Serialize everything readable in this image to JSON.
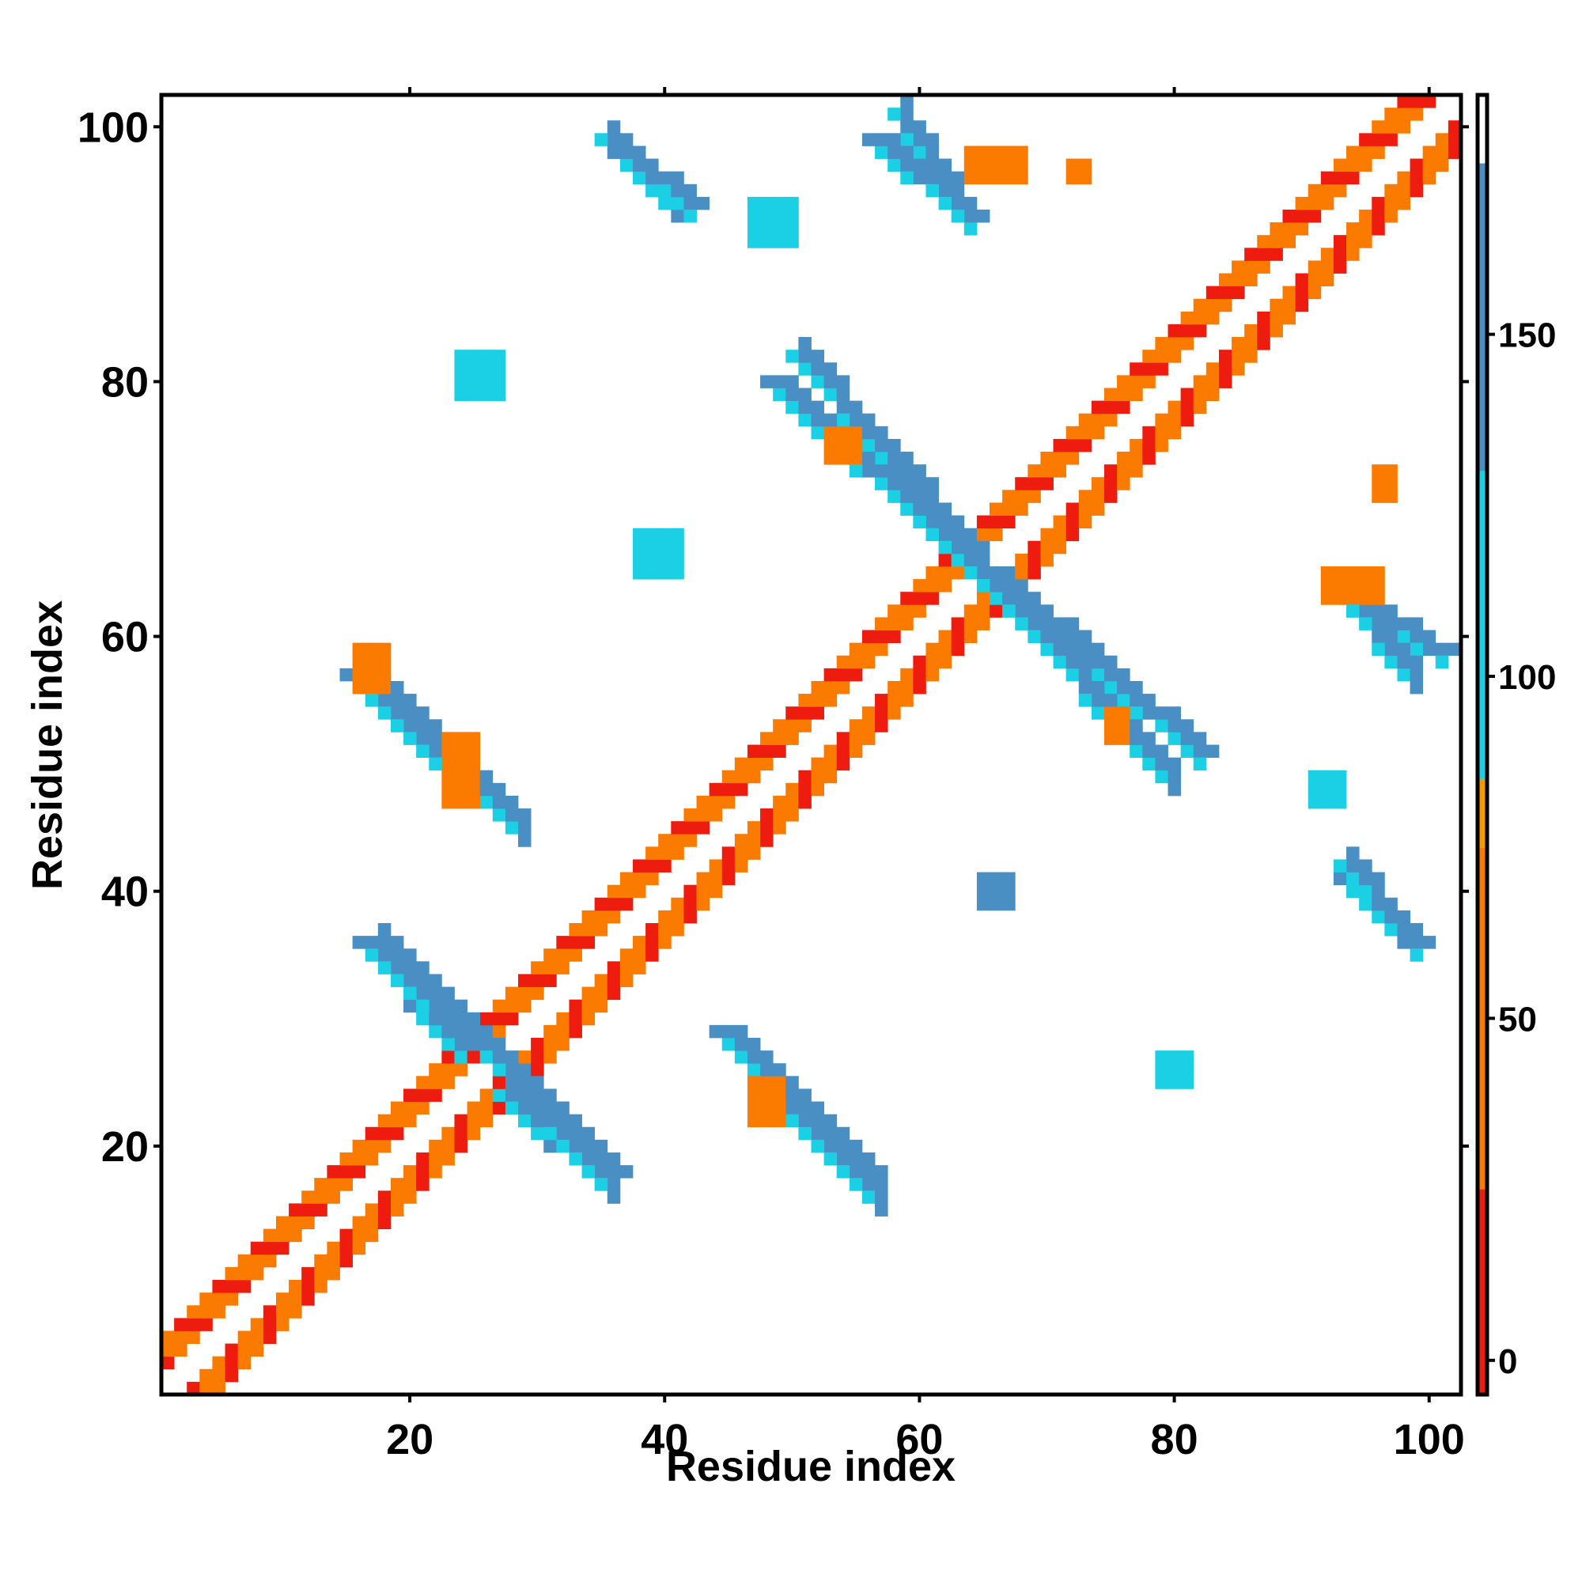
{
  "chart_data": {
    "type": "heatmap",
    "title": "",
    "xlabel": "Residue index",
    "ylabel": "Residue index",
    "xlim": [
      1,
      102
    ],
    "ylim": [
      1,
      102
    ],
    "xticks": [
      20,
      40,
      60,
      80,
      100
    ],
    "yticks": [
      20,
      40,
      60,
      80,
      100
    ],
    "grid": false,
    "colorbar": {
      "range": [
        -5,
        185
      ],
      "ticks": [
        0,
        50,
        100,
        150
      ],
      "bands": [
        {
          "from": -5,
          "to": 25,
          "color": "#ee1c0e"
        },
        {
          "from": 25,
          "to": 75,
          "color": "#fb7a00"
        },
        {
          "from": 75,
          "to": 85,
          "color": "#f49a00"
        },
        {
          "from": 85,
          "to": 130,
          "color": "#1bd0e4"
        },
        {
          "from": 130,
          "to": 175,
          "color": "#4a8fc4"
        },
        {
          "from": 175,
          "to": 185,
          "color": "#ffffff"
        }
      ]
    },
    "cell_colors": {
      "red": "#ee1c0e",
      "orange": "#fb7a00",
      "light_orange": "#f49a00",
      "cyan": "#1bd0e4",
      "blue": "#4a8fc4"
    },
    "regions": [
      {
        "kind": "diagonal_band",
        "from": 1,
        "to": 102,
        "note": "i±1..4 contacts, mixed red/orange with cyan inside sheets"
      },
      {
        "kind": "antiparallel_strip",
        "i": [
          18,
          30
        ],
        "j": [
          36,
          24
        ],
        "value": 150
      },
      {
        "kind": "antiparallel_strip",
        "i": [
          18,
          29
        ],
        "j": [
          56,
          45
        ],
        "value": 150
      },
      {
        "kind": "antiparallel_strip",
        "i": [
          51,
          65
        ],
        "j": [
          82,
          66
        ],
        "value": 150
      },
      {
        "kind": "antiparallel_strip",
        "i": [
          66,
          80
        ],
        "j": [
          64,
          49
        ],
        "value": 150
      },
      {
        "kind": "antiparallel_strip",
        "i": [
          49,
          57
        ],
        "j": [
          24,
          16
        ],
        "value": 150
      },
      {
        "kind": "antiparallel_strip",
        "i": [
          28,
          36
        ],
        "j": [
          24,
          17
        ],
        "value": 150
      },
      {
        "kind": "antiparallel_strip",
        "i": [
          59,
          64
        ],
        "j": [
          101,
          93
        ],
        "value": 150
      },
      {
        "kind": "antiparallel_strip",
        "i": [
          36,
          41
        ],
        "j": [
          99,
          94
        ],
        "value": 150
      },
      {
        "kind": "antiparallel_strip",
        "i": [
          93,
          99
        ],
        "j": [
          64,
          57
        ],
        "value": 150
      },
      {
        "kind": "antiparallel_strip",
        "i": [
          94,
          98
        ],
        "j": [
          42,
          37
        ],
        "value": 150
      },
      {
        "kind": "patch",
        "i": [
          47,
          50
        ],
        "j": [
          91,
          94
        ],
        "value": 105
      },
      {
        "kind": "patch",
        "i": [
          24,
          27
        ],
        "j": [
          79,
          82
        ],
        "value": 105
      },
      {
        "kind": "patch",
        "i": [
          38,
          41
        ],
        "j": [
          65,
          68
        ],
        "value": 105
      },
      {
        "kind": "patch",
        "i": [
          65,
          67
        ],
        "j": [
          39,
          41
        ],
        "value": 150
      },
      {
        "kind": "patch",
        "i": [
          79,
          81
        ],
        "j": [
          25,
          27
        ],
        "value": 105
      },
      {
        "kind": "patch",
        "i": [
          91,
          93
        ],
        "j": [
          47,
          49
        ],
        "value": 120
      },
      {
        "kind": "patch",
        "i": [
          16,
          18
        ],
        "j": [
          56,
          59
        ],
        "value": 50
      },
      {
        "kind": "patch",
        "i": [
          23,
          25
        ],
        "j": [
          47,
          52
        ],
        "value": 50
      },
      {
        "kind": "patch",
        "i": [
          47,
          49
        ],
        "j": [
          22,
          25
        ],
        "value": 30
      },
      {
        "kind": "patch",
        "i": [
          53,
          55
        ],
        "j": [
          74,
          76
        ],
        "value": 50
      },
      {
        "kind": "patch",
        "i": [
          75,
          76
        ],
        "j": [
          52,
          54
        ],
        "value": 50
      },
      {
        "kind": "patch",
        "i": [
          64,
          68
        ],
        "j": [
          96,
          98
        ],
        "value": 50
      },
      {
        "kind": "patch",
        "i": [
          72,
          73
        ],
        "j": [
          96,
          97
        ],
        "value": 50
      },
      {
        "kind": "patch",
        "i": [
          92,
          96
        ],
        "j": [
          63,
          65
        ],
        "value": 40
      },
      {
        "kind": "patch",
        "i": [
          96,
          97
        ],
        "j": [
          71,
          73
        ],
        "value": 50
      }
    ]
  }
}
